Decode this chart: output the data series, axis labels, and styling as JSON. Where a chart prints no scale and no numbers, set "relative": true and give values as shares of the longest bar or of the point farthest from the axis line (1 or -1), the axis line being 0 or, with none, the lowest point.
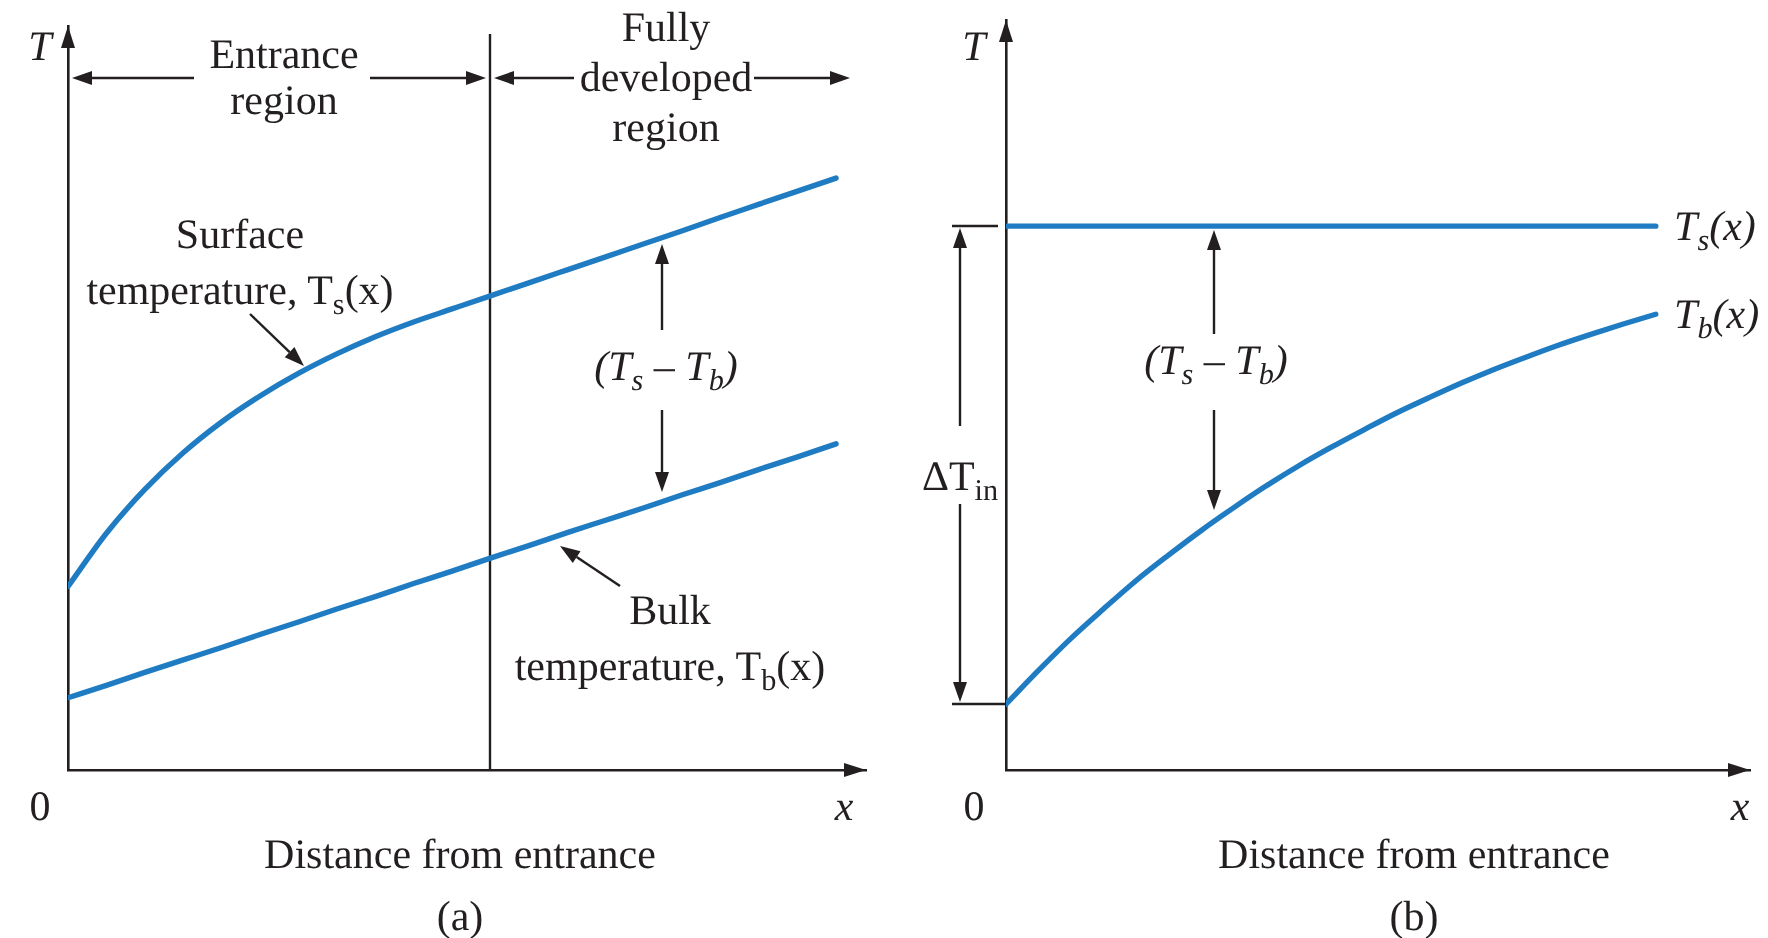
{
  "chart_data": [
    {
      "type": "line",
      "title": "(a)",
      "xlabel": "Distance from entrance",
      "ylabel": "T",
      "relative": true,
      "categories": [
        null,
        null,
        null,
        null,
        null,
        null,
        null,
        null,
        null,
        null,
        null,
        null,
        null,
        null,
        null,
        null,
        null,
        null,
        null,
        null,
        null
      ],
      "series": [
        {
          "name": "Surface temperature, T$_{s}$(x)",
          "color": "#1f7cc2",
          "values": [
            0.31,
            0.4,
            0.474,
            0.536,
            0.588,
            0.632,
            0.67,
            0.703,
            0.732,
            0.757,
            0.779,
            0.801,
            0.823,
            0.845,
            0.867,
            0.889,
            0.911,
            0.934,
            0.956,
            0.978,
            1
          ]
        },
        {
          "name": "Bulk temperature, T$_{b}$(x)",
          "color": "#1f7cc2",
          "values": [
            0.122,
            0.143,
            0.165,
            0.186,
            0.207,
            0.229,
            0.25,
            0.272,
            0.293,
            0.315,
            0.336,
            0.358,
            0.379,
            0.401,
            0.422,
            0.443,
            0.465,
            0.486,
            0.508,
            0.529,
            0.551
          ]
        }
      ],
      "annotations": [
        "0",
        "x",
        "Entrance region",
        "Fully developed region",
        "(T$_{s}$ – T$_{b}$)"
      ]
    },
    {
      "type": "line",
      "title": "(b)",
      "xlabel": "Distance from entrance",
      "ylabel": "T",
      "relative": true,
      "categories": [
        null,
        null,
        null,
        null,
        null,
        null,
        null,
        null,
        null,
        null,
        null,
        null,
        null,
        null,
        null,
        null,
        null,
        null,
        null,
        null,
        null
      ],
      "series": [
        {
          "name": "T$_{s}$(x)",
          "color": "#1f7cc2",
          "values": [
            1,
            1,
            1,
            1,
            1,
            1,
            1,
            1,
            1,
            1,
            1,
            1,
            1,
            1,
            1,
            1,
            1,
            1,
            1,
            1,
            1
          ]
        },
        {
          "name": "T$_{b}$(x)",
          "color": "#1f7cc2",
          "values": [
            0.121,
            0.183,
            0.242,
            0.296,
            0.348,
            0.395,
            0.44,
            0.482,
            0.522,
            0.559,
            0.593,
            0.625,
            0.656,
            0.684,
            0.711,
            0.736,
            0.759,
            0.781,
            0.801,
            0.82,
            0.838
          ]
        }
      ],
      "annotations": [
        "0",
        "x",
        "(T$_{s}$ – T$_{b}$)",
        "ΔT$_{in}$"
      ]
    }
  ]
}
